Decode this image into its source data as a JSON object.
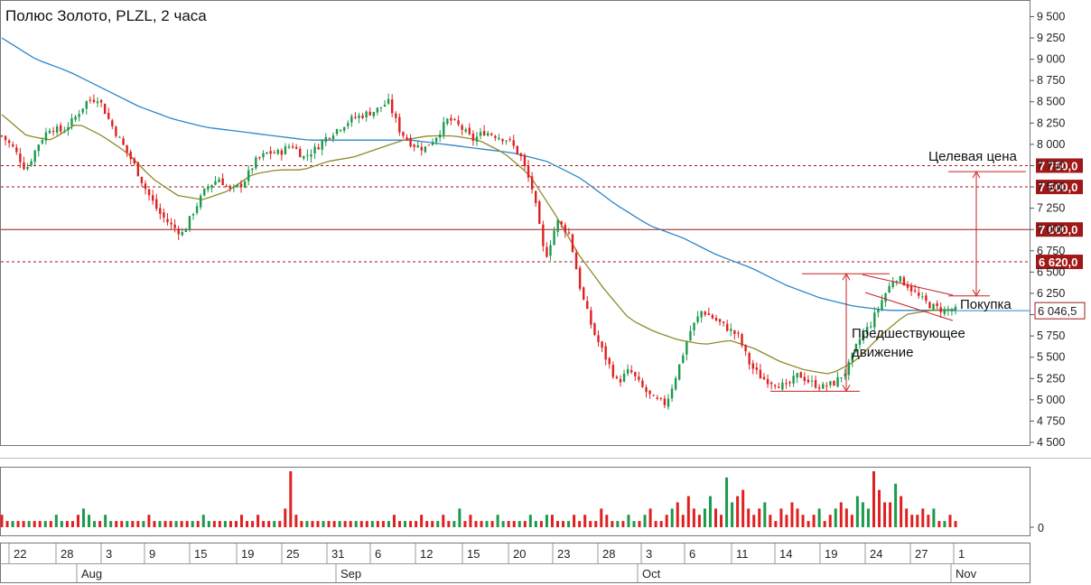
{
  "chart_data": {
    "type": "candlestick",
    "title": "Полюс Золото, PLZL, 2 часа",
    "ylim": [
      4500,
      9600
    ],
    "y_ticks": [
      {
        "value": 4500,
        "label": "4 500"
      },
      {
        "value": 4750,
        "label": "4 750"
      },
      {
        "value": 5000,
        "label": "5 000"
      },
      {
        "value": 5250,
        "label": "5 250"
      },
      {
        "value": 5500,
        "label": "5 500"
      },
      {
        "value": 5750,
        "label": "5 750"
      },
      {
        "value": 6000,
        "label": "6 000"
      },
      {
        "value": 6250,
        "label": "6 250"
      },
      {
        "value": 6500,
        "label": "6 500"
      },
      {
        "value": 6750,
        "label": "6 750"
      },
      {
        "value": 7000,
        "label": "7 000"
      },
      {
        "value": 7250,
        "label": "7 250"
      },
      {
        "value": 7500,
        "label": "7 500"
      },
      {
        "value": 7750,
        "label": "7 750"
      },
      {
        "value": 8000,
        "label": "8 000"
      },
      {
        "value": 8250,
        "label": "8 250"
      },
      {
        "value": 8500,
        "label": "8 500"
      },
      {
        "value": 8750,
        "label": "8 750"
      },
      {
        "value": 9000,
        "label": "9 000"
      },
      {
        "value": 9250,
        "label": "9 250"
      },
      {
        "value": 9500,
        "label": "9 500"
      }
    ],
    "x_ticks": [
      "22",
      "28",
      "3",
      "9",
      "15",
      "19",
      "25",
      "31",
      "6",
      "12",
      "15",
      "20",
      "23",
      "28",
      "3",
      "6",
      "11",
      "14",
      "19",
      "24",
      "27",
      "1"
    ],
    "months": [
      "Aug",
      "Sep",
      "Oct",
      "Nov"
    ],
    "close_path": [
      8100,
      7950,
      7700,
      8000,
      8200,
      8150,
      8300,
      8500,
      8550,
      8250,
      8000,
      7750,
      7450,
      7200,
      7050,
      6950,
      7250,
      7500,
      7600,
      7450,
      7550,
      7800,
      7900,
      7900,
      8000,
      7850,
      7950,
      8100,
      8200,
      8300,
      8350,
      8400,
      8500,
      8150,
      8000,
      7950,
      8100,
      8300,
      8200,
      8050,
      8150,
      8100,
      8050,
      7850,
      7450,
      6650,
      7100,
      6950,
      6250,
      5800,
      5500,
      5200,
      5350,
      5150,
      5000,
      4950,
      5350,
      5800,
      6050,
      5950,
      5850,
      5750,
      5400,
      5250,
      5200,
      5150,
      5300,
      5200,
      5150,
      5200,
      5350,
      5700,
      5900,
      6200,
      6450,
      6350,
      6200,
      6100,
      6050,
      6050
    ],
    "ma_fast_path": [
      8350,
      8100,
      8050,
      8250,
      8100,
      7900,
      7600,
      7400,
      7350,
      7450,
      7650,
      7700,
      7700,
      7800,
      7850,
      7950,
      8050,
      8100,
      8100,
      8050,
      7900,
      7650,
      7200,
      6700,
      6300,
      5950,
      5800,
      5700,
      5650,
      5700,
      5600,
      5450,
      5350,
      5300,
      5450,
      5750,
      6000,
      6050,
      6050
    ],
    "ma_slow_path": [
      9250,
      9000,
      8850,
      8650,
      8450,
      8300,
      8200,
      8150,
      8100,
      8050,
      8050,
      8050,
      8050,
      8000,
      7950,
      7900,
      7800,
      7600,
      7300,
      7050,
      6900,
      6700,
      6550,
      6350,
      6200,
      6100,
      6050,
      6050,
      6060
    ],
    "volume_values": [
      2,
      1,
      1,
      1,
      1,
      1,
      1,
      1,
      1,
      1,
      2,
      1,
      1,
      1,
      2,
      3,
      2,
      1,
      1,
      2,
      1,
      1,
      1,
      1,
      1,
      1,
      1,
      2,
      1,
      1,
      1,
      1,
      1,
      1,
      1,
      1,
      1,
      2,
      1,
      1,
      1,
      1,
      1,
      1,
      2,
      1,
      1,
      2,
      1,
      1,
      1,
      1,
      3,
      9,
      2,
      1,
      1,
      1,
      1,
      1,
      1,
      1,
      1,
      1,
      1,
      1,
      1,
      1,
      1,
      1,
      1,
      1,
      2,
      1,
      1,
      1,
      1,
      2,
      1,
      1,
      1,
      2,
      1,
      1,
      3,
      1,
      2,
      1,
      1,
      1,
      1,
      2,
      1,
      1,
      1,
      1,
      1,
      2,
      1,
      1,
      2,
      2,
      1,
      1,
      1,
      2,
      1,
      2,
      1,
      1,
      3,
      2,
      1,
      1,
      1,
      2,
      1,
      1,
      2,
      3,
      1,
      1,
      2,
      3,
      4,
      2,
      5,
      3,
      2,
      3,
      5,
      3,
      2,
      8,
      4,
      5,
      6,
      3,
      2,
      3,
      4,
      2,
      1,
      3,
      2,
      4,
      3,
      2,
      1,
      2,
      3,
      1,
      2,
      3,
      4,
      3,
      2,
      5,
      4,
      3,
      9,
      6,
      4,
      4,
      7,
      5,
      3,
      2,
      2,
      3,
      2,
      3,
      1,
      1,
      2,
      1
    ],
    "last_price_label": "6 046,5",
    "levels": [
      {
        "value": 7750,
        "label": "7 750,0",
        "style": "dashed"
      },
      {
        "value": 7500,
        "label": "7 500,0",
        "style": "dashed"
      },
      {
        "value": 7000,
        "label": "7 000,0",
        "style": "solid"
      },
      {
        "value": 6620,
        "label": "6 620,0",
        "style": "dashed"
      }
    ],
    "annotations": {
      "target": "Целевая цена",
      "buy": "Покупка",
      "prior_move_line1": "Предшествующее",
      "prior_move_line2": "движение"
    },
    "volume_zero_label": "0",
    "colors": {
      "up": "#1c9a4c",
      "down": "#e02020",
      "ma_fast": "#8f8a2c",
      "ma_slow": "#2b86c8",
      "level": "#9a1a1a"
    }
  }
}
